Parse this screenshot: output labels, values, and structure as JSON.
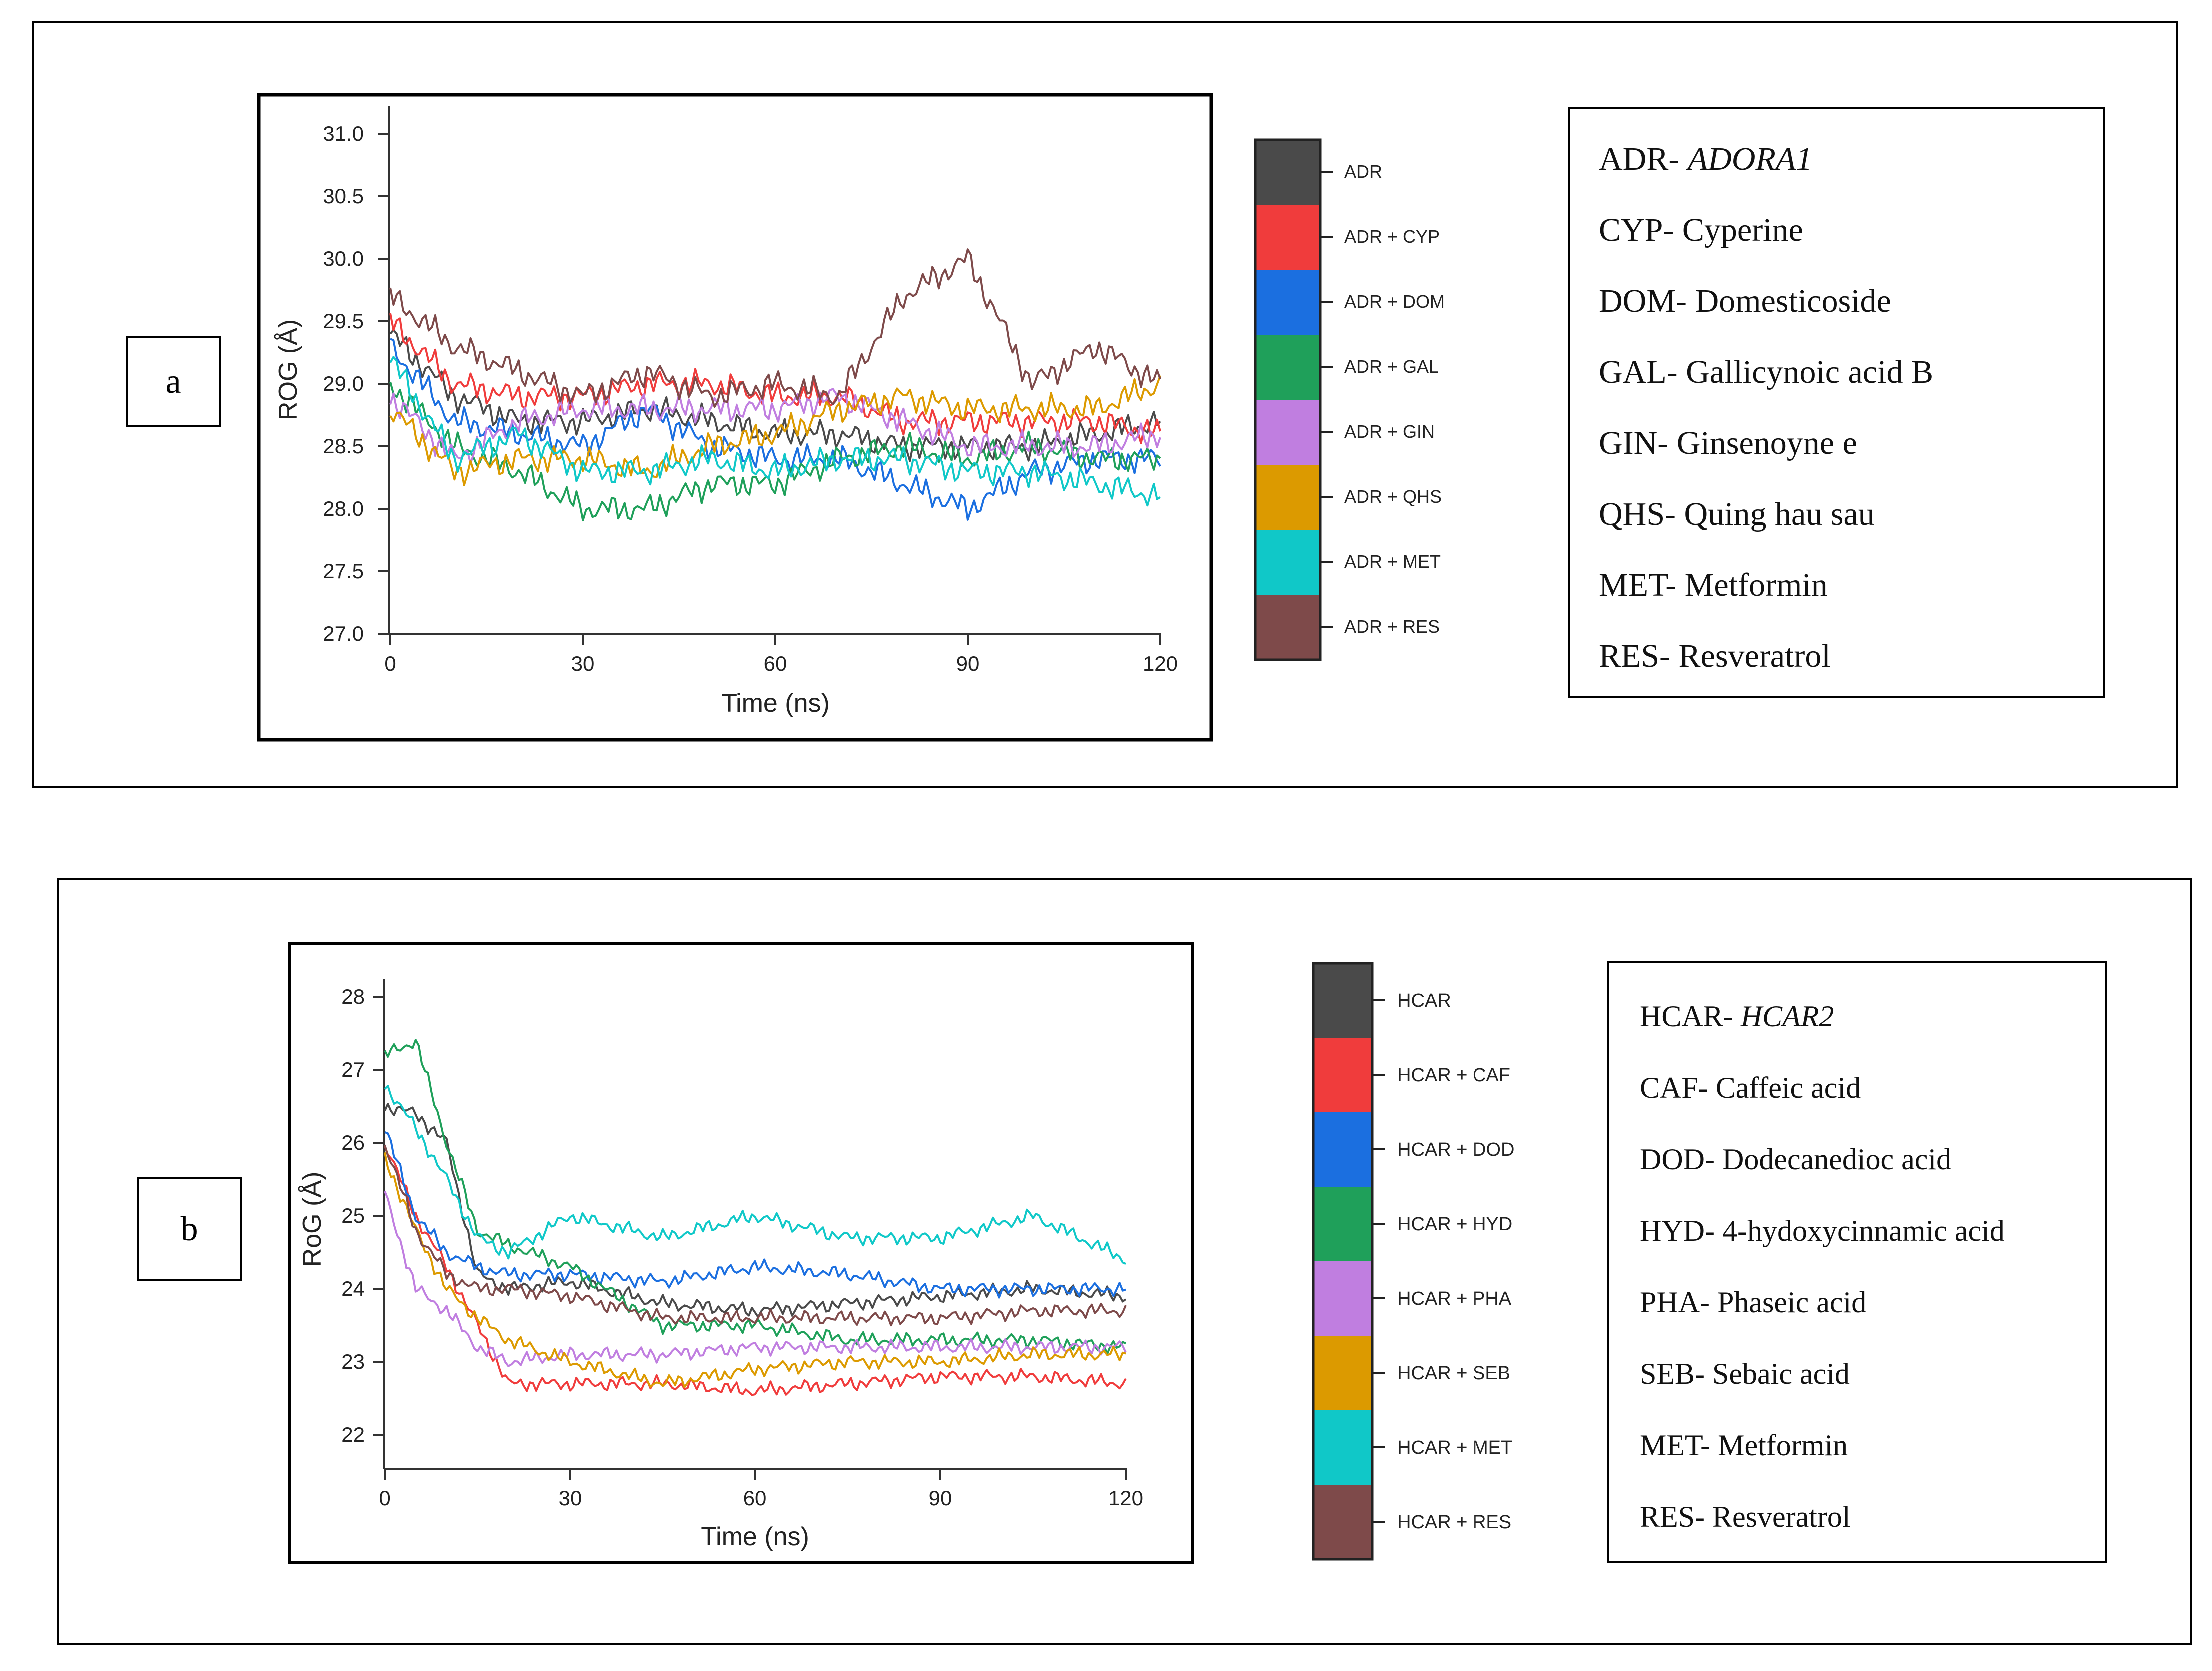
{
  "panels": [
    {
      "label": "a",
      "chart": {
        "ylabel": "ROG (Å)",
        "xlabel": "Time (ns)",
        "yticks": [
          "31.0",
          "30.5",
          "30.0",
          "29.5",
          "29.0",
          "28.5",
          "28.0",
          "27.5",
          "27.0"
        ],
        "xticks": [
          "0",
          "30",
          "60",
          "90",
          "120"
        ]
      },
      "legend": [
        "ADR",
        "ADR + CYP",
        "ADR + DOM",
        "ADR + GAL",
        "ADR + GIN",
        "ADR + QHS",
        "ADR + MET",
        "ADR + RES"
      ],
      "key": [
        {
          "abbr": "ADR- ",
          "name": "ADORA1",
          "italic": true
        },
        {
          "abbr": "CYP- ",
          "name": "Cyperine",
          "italic": false
        },
        {
          "abbr": "DOM- ",
          "name": "Domesticoside",
          "italic": false
        },
        {
          "abbr": "GAL- ",
          "name": "Gallicynoic acid B",
          "italic": false
        },
        {
          "abbr": "GIN- ",
          "name": "Ginsenoyne e",
          "italic": false
        },
        {
          "abbr": "QHS- ",
          "name": "Quing hau sau",
          "italic": false
        },
        {
          "abbr": "MET- ",
          "name": "Metformin",
          "italic": false
        },
        {
          "abbr": "RES- ",
          "name": "Resveratrol",
          "italic": false
        }
      ]
    },
    {
      "label": "b",
      "chart": {
        "ylabel": "RoG (Å)",
        "xlabel": "Time (ns)",
        "yticks": [
          "28",
          "27",
          "26",
          "25",
          "24",
          "23",
          "22"
        ],
        "xticks": [
          "0",
          "30",
          "60",
          "90",
          "120"
        ]
      },
      "legend": [
        "HCAR",
        "HCAR + CAF",
        "HCAR + DOD",
        "HCAR + HYD",
        "HCAR + PHA",
        "HCAR + SEB",
        "HCAR + MET",
        "HCAR + RES"
      ],
      "key": [
        {
          "abbr": "HCAR- ",
          "name": "HCAR2",
          "italic": true
        },
        {
          "abbr": "CAF- ",
          "name": "Caffeic acid",
          "italic": false
        },
        {
          "abbr": "DOD- ",
          "name": "Dodecanedioc acid",
          "italic": false
        },
        {
          "abbr": "HYD- ",
          "name": "4-hydoxycinnamic acid",
          "italic": false
        },
        {
          "abbr": "PHA- ",
          "name": "Phaseic acid",
          "italic": false
        },
        {
          "abbr": "SEB- ",
          "name": "Sebaic acid",
          "italic": false
        },
        {
          "abbr": "MET- ",
          "name": "Metformin",
          "italic": false
        },
        {
          "abbr": "RES- ",
          "name": "Resveratrol",
          "italic": false
        }
      ]
    }
  ],
  "series_colors": [
    "#4a4a4a",
    "#f03c3c",
    "#1b6fe0",
    "#1fa05a",
    "#c07ee0",
    "#dc9a00",
    "#10c8c8",
    "#7e4a4a"
  ],
  "chart_data": [
    {
      "type": "line",
      "title": "",
      "xlabel": "Time (ns)",
      "ylabel": "ROG (Å)",
      "xlim": [
        0,
        120
      ],
      "ylim": [
        27.0,
        31.0
      ],
      "x": [
        0,
        10,
        20,
        30,
        40,
        50,
        60,
        70,
        80,
        90,
        100,
        110,
        120
      ],
      "series": [
        {
          "name": "ADR",
          "values": [
            29.4,
            28.9,
            28.7,
            28.7,
            28.8,
            28.7,
            28.6,
            28.6,
            28.5,
            28.5,
            28.5,
            28.6,
            28.7
          ]
        },
        {
          "name": "ADR + CYP",
          "values": [
            29.5,
            29.0,
            28.9,
            28.9,
            29.0,
            29.0,
            28.9,
            28.9,
            28.7,
            28.7,
            28.7,
            28.7,
            28.6
          ]
        },
        {
          "name": "ADR + DOM",
          "values": [
            29.3,
            28.7,
            28.6,
            28.5,
            28.8,
            28.5,
            28.4,
            28.4,
            28.2,
            28.0,
            28.3,
            28.4,
            28.4
          ]
        },
        {
          "name": "ADR + GAL",
          "values": [
            29.0,
            28.5,
            28.3,
            28.0,
            28.0,
            28.2,
            28.2,
            28.4,
            28.5,
            28.4,
            28.5,
            28.4,
            28.4
          ]
        },
        {
          "name": "ADR + GIN",
          "values": [
            28.9,
            28.4,
            28.7,
            28.8,
            28.8,
            28.8,
            28.8,
            28.9,
            28.7,
            28.5,
            28.5,
            28.5,
            28.6
          ]
        },
        {
          "name": "ADR + QHS",
          "values": [
            28.8,
            28.3,
            28.4,
            28.4,
            28.3,
            28.5,
            28.6,
            28.8,
            28.9,
            28.8,
            28.8,
            28.8,
            29.0
          ]
        },
        {
          "name": "ADR + MET",
          "values": [
            29.2,
            28.4,
            28.6,
            28.3,
            28.3,
            28.4,
            28.3,
            28.4,
            28.4,
            28.3,
            28.3,
            28.2,
            28.1
          ]
        },
        {
          "name": "ADR + RES",
          "values": [
            29.7,
            29.3,
            29.1,
            28.9,
            29.1,
            28.9,
            29.0,
            28.9,
            29.7,
            30.0,
            29.0,
            29.3,
            29.0
          ]
        }
      ]
    },
    {
      "type": "line",
      "title": "",
      "xlabel": "Time (ns)",
      "ylabel": "RoG (Å)",
      "xlim": [
        0,
        120
      ],
      "ylim": [
        21.7,
        28.2
      ],
      "x": [
        0,
        5,
        10,
        15,
        20,
        30,
        45,
        60,
        75,
        90,
        105,
        120
      ],
      "series": [
        {
          "name": "HCAR",
          "values": [
            26.5,
            26.4,
            26.0,
            24.2,
            24.0,
            24.1,
            23.8,
            23.7,
            23.8,
            23.9,
            24.0,
            23.9
          ]
        },
        {
          "name": "HCAR + CAF",
          "values": [
            26.0,
            25.0,
            24.3,
            23.5,
            22.7,
            22.7,
            22.7,
            22.6,
            22.7,
            22.8,
            22.8,
            22.7
          ]
        },
        {
          "name": "HCAR + DOD",
          "values": [
            26.2,
            25.0,
            24.5,
            24.3,
            24.2,
            24.2,
            24.1,
            24.3,
            24.2,
            24.0,
            24.0,
            24.0
          ]
        },
        {
          "name": "HCAR + HYD",
          "values": [
            27.2,
            27.4,
            26.0,
            24.8,
            24.6,
            24.3,
            23.5,
            23.5,
            23.3,
            23.3,
            23.3,
            23.2
          ]
        },
        {
          "name": "HCAR + PHA",
          "values": [
            25.3,
            24.0,
            23.7,
            23.2,
            23.0,
            23.1,
            23.1,
            23.2,
            23.2,
            23.2,
            23.2,
            23.2
          ]
        },
        {
          "name": "HCAR + SEB",
          "values": [
            25.8,
            24.8,
            24.0,
            23.6,
            23.3,
            23.0,
            22.7,
            22.9,
            23.0,
            23.0,
            23.1,
            23.1
          ]
        },
        {
          "name": "HCAR + MET",
          "values": [
            26.8,
            26.2,
            25.5,
            24.7,
            24.5,
            25.0,
            24.7,
            25.0,
            24.7,
            24.7,
            25.0,
            24.4
          ]
        },
        {
          "name": "HCAR + RES",
          "values": [
            26.0,
            24.8,
            24.2,
            24.0,
            24.0,
            23.9,
            23.6,
            23.6,
            23.6,
            23.6,
            23.7,
            23.7
          ]
        }
      ]
    }
  ]
}
